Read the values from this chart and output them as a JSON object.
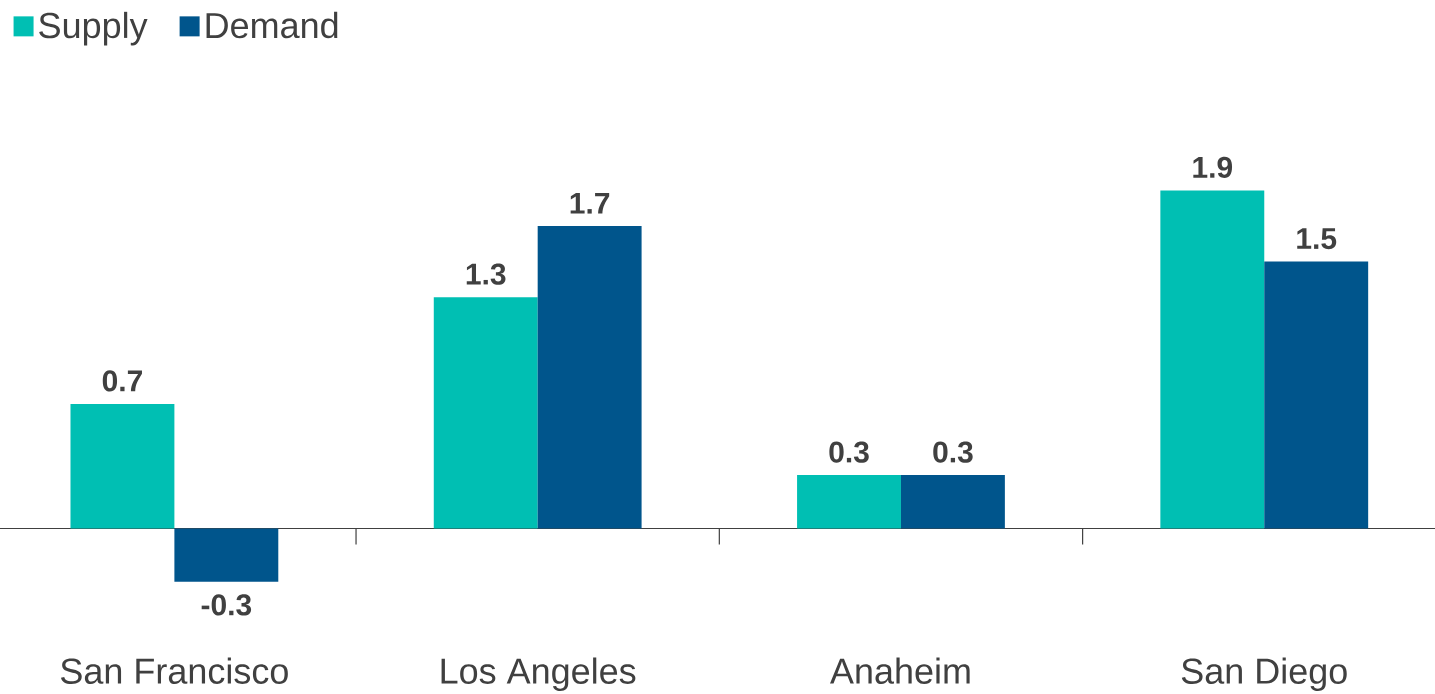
{
  "chart_data": {
    "type": "bar",
    "categories": [
      "San Francisco",
      "Los Angeles",
      "Anaheim",
      "San Diego"
    ],
    "series": [
      {
        "name": "Supply",
        "color": "#00bfb3",
        "values": [
          0.7,
          1.3,
          0.3,
          1.9
        ]
      },
      {
        "name": "Demand",
        "color": "#00558c",
        "values": [
          -0.3,
          1.7,
          0.3,
          1.5
        ]
      }
    ],
    "data_labels": true,
    "legend": "top left"
  }
}
